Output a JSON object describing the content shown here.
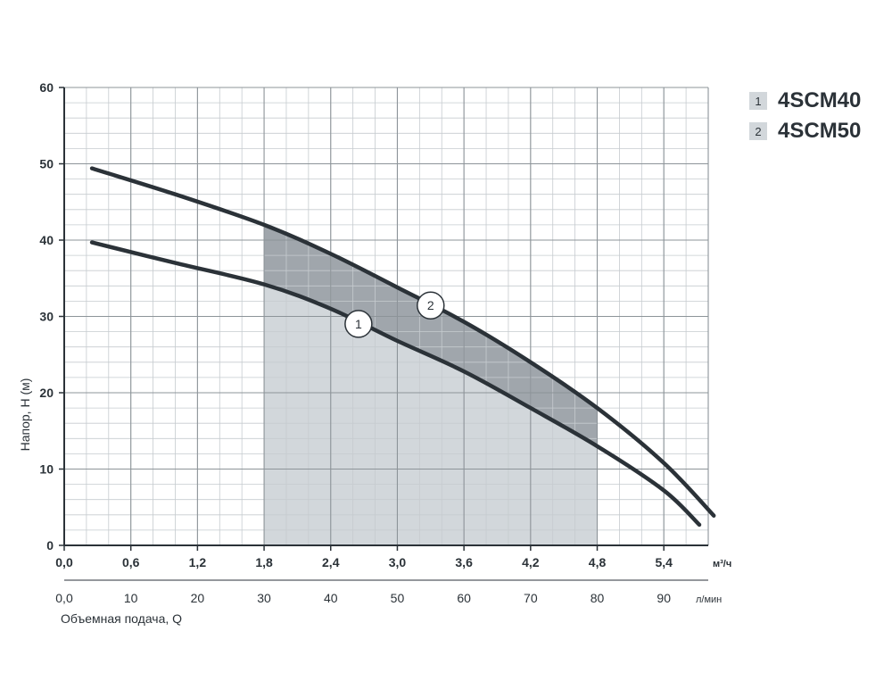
{
  "chart_data": {
    "type": "line",
    "ylabel": "Напор, H (м)",
    "xlabel": "Объемная подача, Q",
    "x_unit_primary": "м³/ч",
    "x_unit_secondary": "л/мин",
    "xlim": [
      0,
      5.8
    ],
    "ylim": [
      0,
      60
    ],
    "grid": true,
    "legend_position": "top-right",
    "x_ticks_primary": [
      "0,0",
      "0,6",
      "1,2",
      "1,8",
      "2,4",
      "3,0",
      "3,6",
      "4,2",
      "4,8",
      "5,4"
    ],
    "x_ticks_primary_values": [
      0,
      0.6,
      1.2,
      1.8,
      2.4,
      3.0,
      3.6,
      4.2,
      4.8,
      5.4
    ],
    "x_ticks_secondary": [
      "0,0",
      "10",
      "20",
      "30",
      "40",
      "50",
      "60",
      "70",
      "80",
      "90"
    ],
    "x_ticks_secondary_values": [
      0,
      10,
      20,
      30,
      40,
      50,
      60,
      70,
      80,
      90
    ],
    "y_ticks": [
      "0",
      "10",
      "20",
      "30",
      "40",
      "50",
      "60"
    ],
    "y_ticks_values": [
      0,
      10,
      20,
      30,
      40,
      50,
      60
    ],
    "operating_range": [
      1.8,
      4.8
    ],
    "series": [
      {
        "name": "4SCM40",
        "marker": "1",
        "x": [
          0.25,
          1.0,
          1.8,
          2.4,
          3.0,
          3.6,
          4.2,
          4.8,
          5.4,
          5.72
        ],
        "values": [
          39.7,
          37.0,
          34.2,
          31.0,
          26.8,
          22.8,
          18.0,
          13.0,
          7.2,
          2.7
        ]
      },
      {
        "name": "4SCM50",
        "marker": "2",
        "x": [
          0.25,
          1.0,
          1.8,
          2.4,
          3.0,
          3.6,
          4.2,
          4.8,
          5.4,
          5.85
        ],
        "values": [
          49.4,
          46.0,
          42.0,
          38.2,
          33.8,
          29.3,
          24.0,
          18.0,
          10.8,
          3.9
        ]
      }
    ]
  },
  "legend": [
    {
      "marker": "1",
      "name": "4SCM40"
    },
    {
      "marker": "2",
      "name": "4SCM50"
    }
  ]
}
